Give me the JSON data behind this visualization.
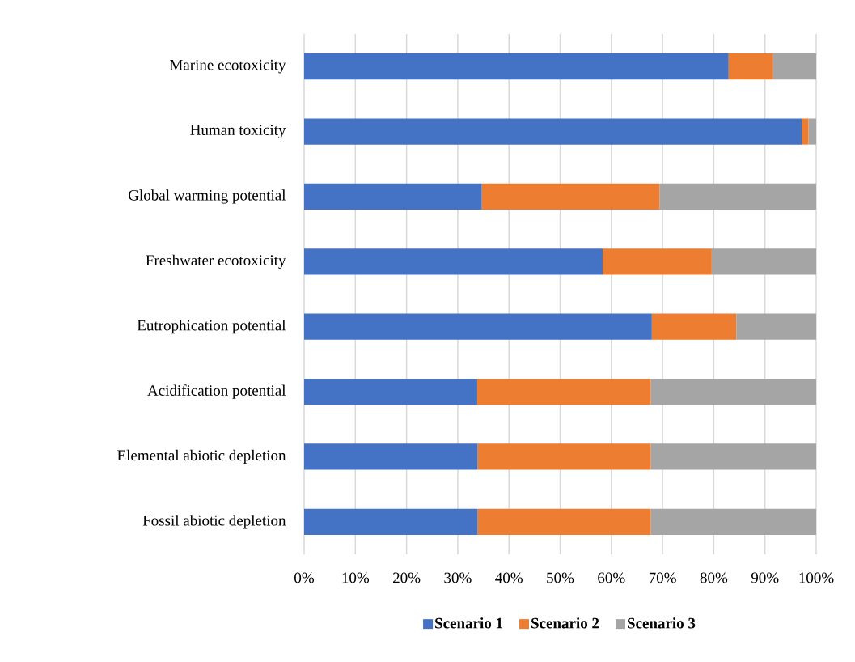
{
  "chart_data": {
    "type": "bar",
    "orientation": "horizontal",
    "stacked": true,
    "categories": [
      "Marine ecotoxicity",
      "Human toxicity",
      "Global warming potential",
      "Freshwater ecotoxicity",
      "Eutrophication potential",
      "Acidification potential",
      "Elemental abiotic depletion",
      "Fossil abiotic depletion"
    ],
    "series": [
      {
        "name": "Scenario 1",
        "color": "#4472c4",
        "values": [
          82.9,
          97.2,
          34.7,
          58.3,
          67.9,
          33.8,
          33.9,
          33.9
        ]
      },
      {
        "name": "Scenario 2",
        "color": "#ed7d31",
        "values": [
          8.7,
          1.3,
          34.7,
          21.3,
          16.5,
          33.9,
          33.8,
          33.8
        ]
      },
      {
        "name": "Scenario 3",
        "color": "#a5a5a5",
        "values": [
          8.4,
          1.5,
          30.6,
          20.4,
          15.6,
          32.3,
          32.3,
          32.3
        ]
      }
    ],
    "xlim": [
      0,
      100
    ],
    "xticks": [
      {
        "value": 0,
        "label": "0%"
      },
      {
        "value": 10,
        "label": "10%"
      },
      {
        "value": 20,
        "label": "20%"
      },
      {
        "value": 30,
        "label": "30%"
      },
      {
        "value": 40,
        "label": "40%"
      },
      {
        "value": 50,
        "label": "50%"
      },
      {
        "value": 60,
        "label": "60%"
      },
      {
        "value": 70,
        "label": "70%"
      },
      {
        "value": 80,
        "label": "80%"
      },
      {
        "value": 90,
        "label": "90%"
      },
      {
        "value": 100,
        "label": "100%"
      }
    ],
    "grid": "x",
    "legend": "bottom"
  }
}
